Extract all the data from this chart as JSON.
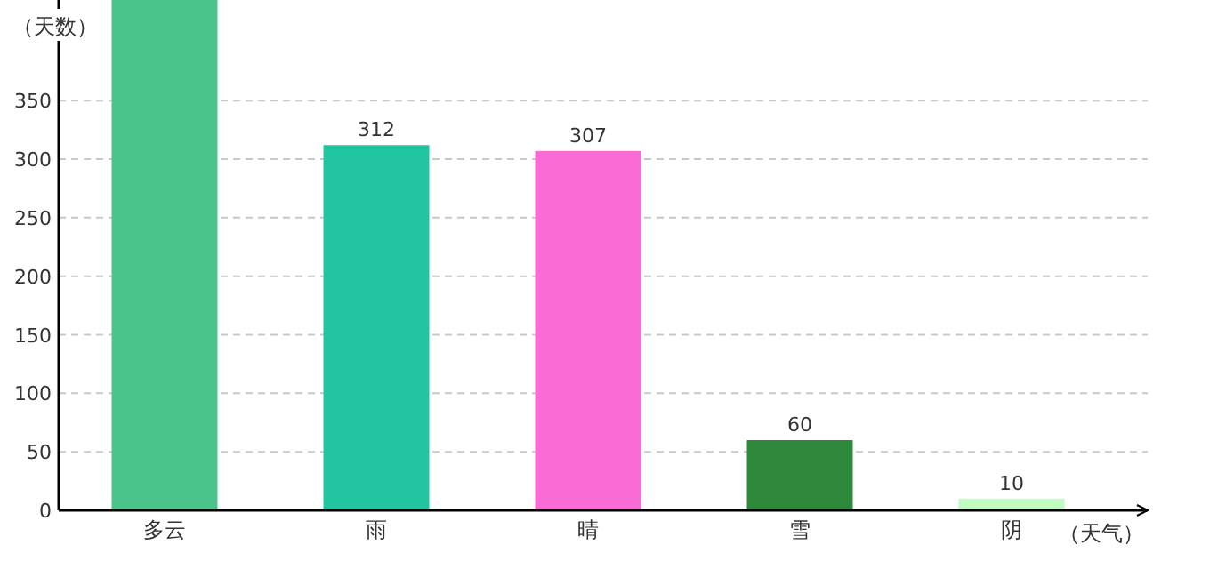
{
  "chart_data": {
    "type": "bar",
    "xlabel": "（天气）",
    "ylabel": "（天数）",
    "categories": [
      "多云",
      "雨",
      "晴",
      "雪",
      "阴"
    ],
    "values": [
      436,
      312,
      307,
      60,
      10
    ],
    "value_labels": [
      null,
      "312",
      "307",
      "60",
      "10"
    ],
    "colors": [
      "#4bc48c",
      "#21c5a0",
      "#fb6bd5",
      "#2e883a",
      "#c0fbc0"
    ],
    "ylim": [
      0,
      436
    ],
    "yticks": [
      0,
      50,
      100,
      150,
      200,
      250,
      300,
      350
    ],
    "grid": "y"
  }
}
